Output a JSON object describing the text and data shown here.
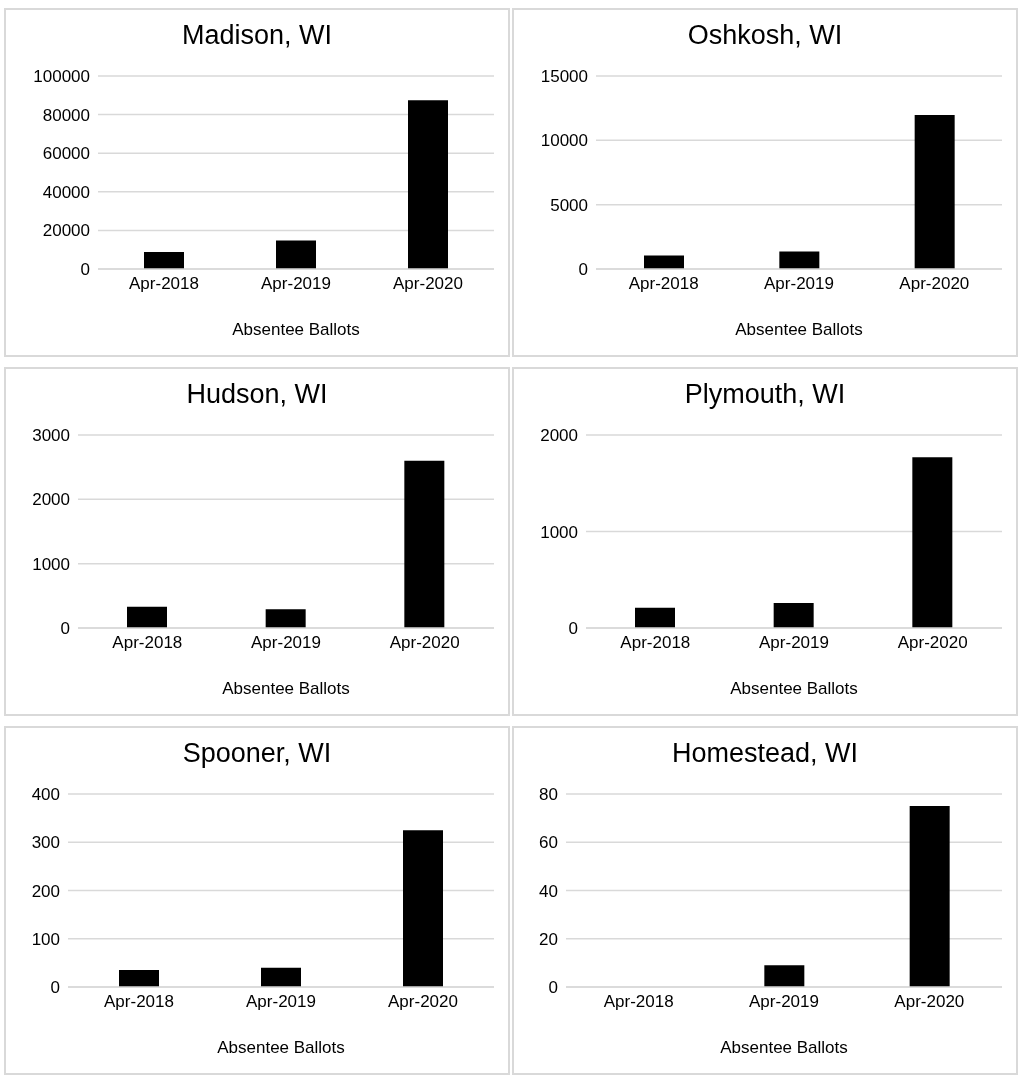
{
  "chart_data": [
    {
      "type": "bar",
      "title": "Madison, WI",
      "xlabel": "Absentee Ballots",
      "categories": [
        "Apr-2018",
        "Apr-2019",
        "Apr-2020"
      ],
      "values": [
        8800,
        14800,
        87400
      ],
      "color": "#000000",
      "ylim": [
        0,
        100000
      ],
      "yticks": [
        0,
        20000,
        40000,
        60000,
        80000,
        100000
      ],
      "grid": "y"
    },
    {
      "type": "bar",
      "title": "Oshkosh, WI",
      "xlabel": "Absentee Ballots",
      "categories": [
        "Apr-2018",
        "Apr-2019",
        "Apr-2020"
      ],
      "values": [
        1040,
        1360,
        11960
      ],
      "color": "#000000",
      "ylim": [
        0,
        15000
      ],
      "yticks": [
        0,
        5000,
        10000,
        15000
      ],
      "grid": "y"
    },
    {
      "type": "bar",
      "title": "Hudson, WI",
      "xlabel": "Absentee Ballots",
      "categories": [
        "Apr-2018",
        "Apr-2019",
        "Apr-2020"
      ],
      "values": [
        330,
        290,
        2600
      ],
      "color": "#000000",
      "ylim": [
        0,
        3000
      ],
      "yticks": [
        0,
        1000,
        2000,
        3000
      ],
      "grid": "y"
    },
    {
      "type": "bar",
      "title": "Plymouth, WI",
      "xlabel": "Absentee Ballots",
      "categories": [
        "Apr-2018",
        "Apr-2019",
        "Apr-2020"
      ],
      "values": [
        210,
        260,
        1770
      ],
      "color": "#000000",
      "ylim": [
        0,
        2000
      ],
      "yticks": [
        0,
        1000,
        2000
      ],
      "grid": "y"
    },
    {
      "type": "bar",
      "title": "Spooner, WI",
      "xlabel": "Absentee Ballots",
      "categories": [
        "Apr-2018",
        "Apr-2019",
        "Apr-2020"
      ],
      "values": [
        35,
        40,
        325
      ],
      "color": "#000000",
      "ylim": [
        0,
        400
      ],
      "yticks": [
        0,
        100,
        200,
        300,
        400
      ],
      "grid": "y"
    },
    {
      "type": "bar",
      "title": "Homestead, WI",
      "xlabel": "Absentee Ballots",
      "categories": [
        "Apr-2018",
        "Apr-2019",
        "Apr-2020"
      ],
      "values": [
        0,
        9,
        75
      ],
      "color": "#000000",
      "ylim": [
        0,
        80
      ],
      "yticks": [
        0,
        20,
        40,
        60,
        80
      ],
      "grid": "y"
    }
  ]
}
